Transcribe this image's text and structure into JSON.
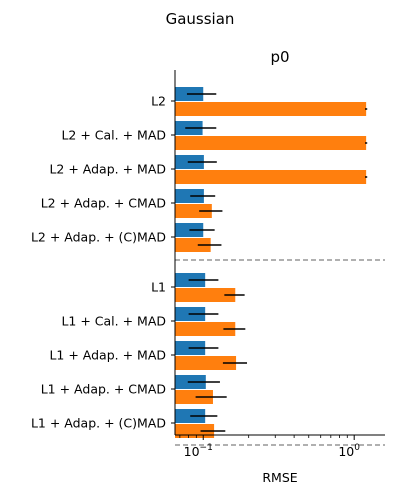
{
  "chart_data": {
    "type": "bar",
    "orientation": "horizontal",
    "suptitle": "Gaussian",
    "title": "p0",
    "xlabel": "RMSE",
    "ylabel": "",
    "xscale": "log",
    "xlim": [
      0.065,
      1.6
    ],
    "x_ticks": [
      {
        "value": 0.1,
        "base": "10",
        "exp": "−1"
      },
      {
        "value": 1,
        "base": "10",
        "exp": "0"
      }
    ],
    "categories": [
      "L2",
      "L2 + Cal. + MAD",
      "L2 + Adap. + MAD",
      "L2 + Adap. + CMAD",
      "L2 + Adap. + (C)MAD",
      "L1",
      "L1 + Cal. + MAD",
      "L1 + Adap. + MAD",
      "L1 + Adap. + CMAD",
      "L1 + Adap. + (C)MAD"
    ],
    "group_separators_after": [
      4,
      9
    ],
    "series": [
      {
        "color": "#1f77b4",
        "values": [
          0.1,
          0.099,
          0.101,
          0.101,
          0.1,
          0.103,
          0.103,
          0.103,
          0.104,
          0.103
        ],
        "err": [
          0.022,
          0.023,
          0.022,
          0.019,
          0.019,
          0.023,
          0.023,
          0.023,
          0.025,
          0.021
        ]
      },
      {
        "color": "#ff7f0e",
        "values": [
          1.2,
          1.2,
          1.2,
          0.114,
          0.112,
          0.163,
          0.163,
          0.165,
          0.116,
          0.118
        ],
        "err": [
          0.02,
          0.02,
          0.02,
          0.02,
          0.02,
          0.025,
          0.027,
          0.03,
          0.027,
          0.022
        ]
      }
    ],
    "separator_color": "#808080",
    "grid": false,
    "legend": "none"
  }
}
